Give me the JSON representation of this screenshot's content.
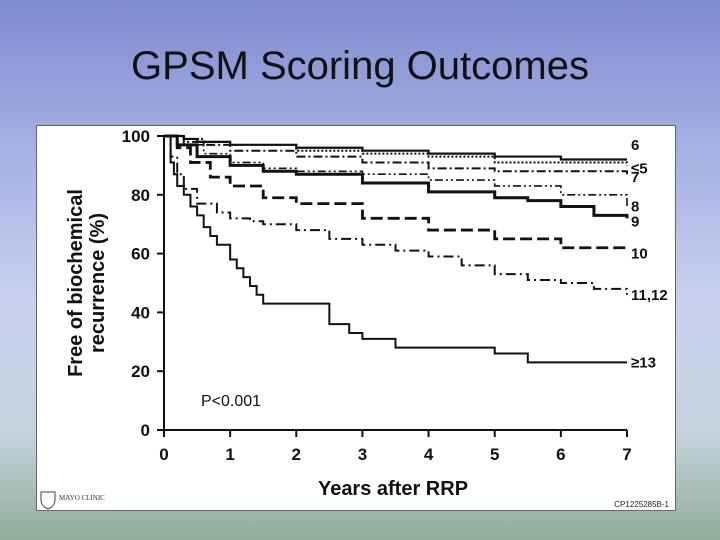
{
  "slide_title": "GPSM Scoring Outcomes",
  "logo_text": "MAYO CLINIC",
  "figure_code": "CP1225285B-1",
  "chart_data": {
    "type": "line",
    "step": true,
    "xlabel": "Years after RRP",
    "ylabel_line1": "Free of biochemical",
    "ylabel_line2": "recurrence (%)",
    "xlim": [
      0,
      7
    ],
    "ylim": [
      0,
      100
    ],
    "xticks": [
      "0",
      "1",
      "2",
      "3",
      "4",
      "5",
      "6",
      "7"
    ],
    "yticks": [
      "0",
      "20",
      "40",
      "60",
      "80",
      "100"
    ],
    "pvalue": "P<0.001",
    "series": [
      {
        "name": "6",
        "dash": "",
        "width": 2.2,
        "x": [
          0,
          0.3,
          0.5,
          1,
          2,
          3,
          4,
          5,
          6,
          7
        ],
        "y": [
          100,
          99,
          98,
          97,
          96,
          95,
          94,
          93,
          92,
          92
        ]
      },
      {
        "name": "≤5",
        "dash": "2,2",
        "width": 2,
        "x": [
          0,
          0.3,
          0.6,
          1,
          2,
          3,
          4,
          5,
          6,
          7
        ],
        "y": [
          100,
          99,
          98,
          97,
          95,
          94,
          93,
          91,
          91,
          90
        ]
      },
      {
        "name": "7",
        "dash": "9,3,2,3",
        "width": 2,
        "x": [
          0,
          0.3,
          0.6,
          1,
          2,
          3,
          4,
          5,
          6,
          7
        ],
        "y": [
          100,
          98,
          97,
          95,
          93,
          91,
          89,
          88,
          88,
          87
        ]
      },
      {
        "name": "8",
        "dash": "8,3,2,3,2,3",
        "width": 1.6,
        "x": [
          0,
          0.3,
          0.6,
          1,
          1.5,
          2,
          3,
          4,
          5,
          6,
          7
        ],
        "y": [
          100,
          97,
          94,
          91,
          89,
          88,
          87,
          85,
          83,
          80,
          76
        ]
      },
      {
        "name": "9",
        "dash": "",
        "width": 3,
        "x": [
          0,
          0.2,
          0.5,
          1,
          1.5,
          2,
          3,
          4,
          5,
          5.5,
          6,
          6.5,
          7
        ],
        "y": [
          100,
          97,
          93,
          90,
          88,
          87,
          84,
          81,
          79,
          78,
          76,
          73,
          72
        ]
      },
      {
        "name": "10",
        "dash": "12,5",
        "width": 2.8,
        "x": [
          0,
          0.2,
          0.4,
          0.7,
          1,
          1.5,
          2,
          3,
          4,
          5,
          6,
          7
        ],
        "y": [
          100,
          96,
          91,
          86,
          83,
          79,
          77,
          72,
          68,
          65,
          62,
          61
        ]
      },
      {
        "name": "11,12",
        "dash": "10,4,2,4",
        "width": 2,
        "x": [
          0,
          0.1,
          0.2,
          0.3,
          0.5,
          0.8,
          1,
          1.3,
          1.5,
          2,
          2.5,
          3,
          3.5,
          4,
          4.5,
          5,
          5.5,
          6,
          6.5,
          7
        ],
        "y": [
          100,
          93,
          87,
          82,
          77,
          74,
          72,
          71,
          70,
          68,
          65,
          63,
          61,
          59,
          56,
          53,
          51,
          50,
          48,
          46
        ]
      },
      {
        "name": "≥13",
        "dash": "",
        "width": 2,
        "x": [
          0,
          0.1,
          0.15,
          0.2,
          0.3,
          0.4,
          0.5,
          0.6,
          0.7,
          0.8,
          1,
          1.1,
          1.2,
          1.3,
          1.4,
          1.5,
          2,
          2.5,
          2.8,
          3,
          3.5,
          4,
          4.5,
          5,
          5.5,
          6,
          6.5,
          7
        ],
        "y": [
          100,
          91,
          87,
          83,
          80,
          76,
          73,
          69,
          66,
          63,
          58,
          55,
          52,
          49,
          46,
          43,
          43,
          36,
          33,
          31,
          28,
          28,
          28,
          26,
          23,
          23,
          23,
          23
        ]
      }
    ],
    "series_label_values": [
      97,
      89,
      86,
      76,
      71,
      60,
      46,
      23
    ]
  }
}
